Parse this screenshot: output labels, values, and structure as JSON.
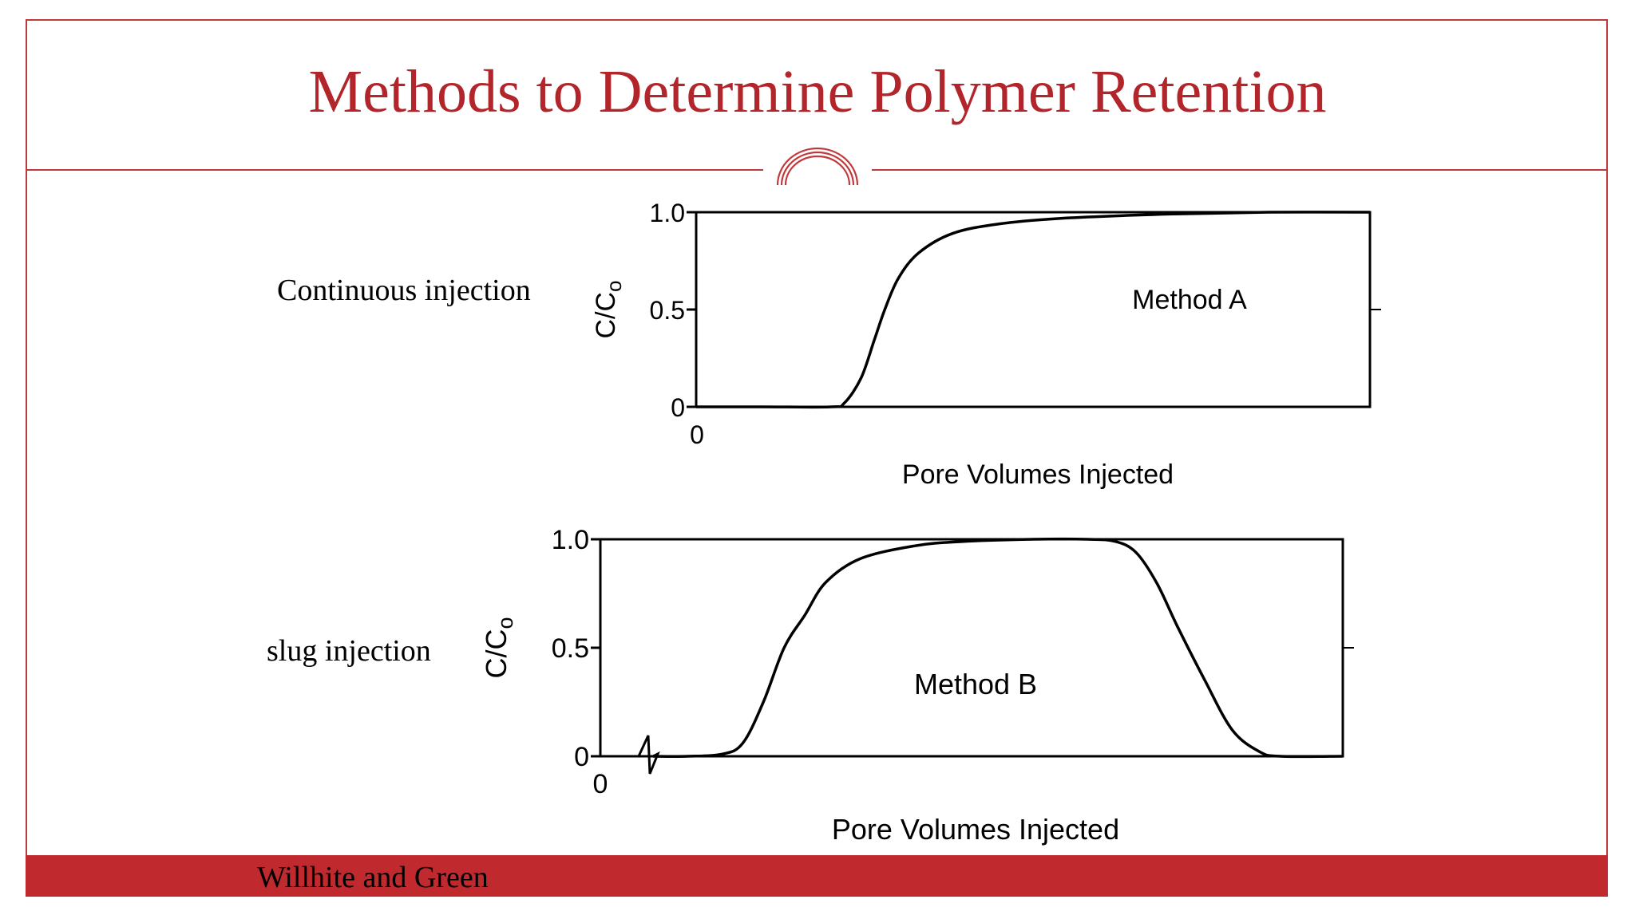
{
  "slide": {
    "title": "Methods to Determine Polymer Retention",
    "footer": "Willhite and Green",
    "accent_color": "#b1252b",
    "footer_color": "#c0292d"
  },
  "labels": {
    "continuous": "Continuous injection",
    "slug": "slug injection"
  },
  "chart_data": [
    {
      "type": "line",
      "title": "",
      "annotation": "Method A",
      "xlabel": "Pore Volumes Injected",
      "ylabel_main": "C/C",
      "ylabel_sub": "o",
      "x_tick_labels": [
        "0"
      ],
      "y_tick_labels": [
        "1.0",
        "0.5",
        "0"
      ],
      "ylim": [
        0,
        1.0
      ],
      "xlim": [
        0,
        1
      ],
      "grid": false,
      "x": [
        0,
        0.1,
        0.2,
        0.22,
        0.245,
        0.265,
        0.28,
        0.3,
        0.33,
        0.38,
        0.45,
        0.55,
        0.7,
        0.85,
        1.0
      ],
      "y": [
        0,
        0,
        0,
        0.02,
        0.15,
        0.35,
        0.5,
        0.66,
        0.79,
        0.89,
        0.94,
        0.97,
        0.99,
        1.0,
        1.0
      ]
    },
    {
      "type": "line",
      "title": "",
      "annotation": "Method B",
      "xlabel": "Pore Volumes Injected",
      "ylabel_main": "C/C",
      "ylabel_sub": "o",
      "x_tick_labels": [
        "0"
      ],
      "y_tick_labels": [
        "1.0",
        "0.5",
        "0"
      ],
      "ylim": [
        0,
        1.0
      ],
      "xlim": [
        0,
        1
      ],
      "grid": false,
      "axis_break": true,
      "x": [
        0,
        0.05,
        0.1,
        0.13,
        0.16,
        0.19,
        0.22,
        0.25,
        0.3,
        0.38,
        0.45,
        0.55,
        0.63,
        0.67,
        0.7,
        0.73,
        0.76,
        0.8,
        0.84,
        0.88,
        0.91,
        1.0
      ],
      "y": [
        0,
        0,
        0.01,
        0.06,
        0.25,
        0.5,
        0.65,
        0.8,
        0.91,
        0.97,
        0.99,
        1.0,
        1.0,
        0.99,
        0.94,
        0.8,
        0.6,
        0.35,
        0.12,
        0.02,
        0,
        0
      ]
    }
  ]
}
